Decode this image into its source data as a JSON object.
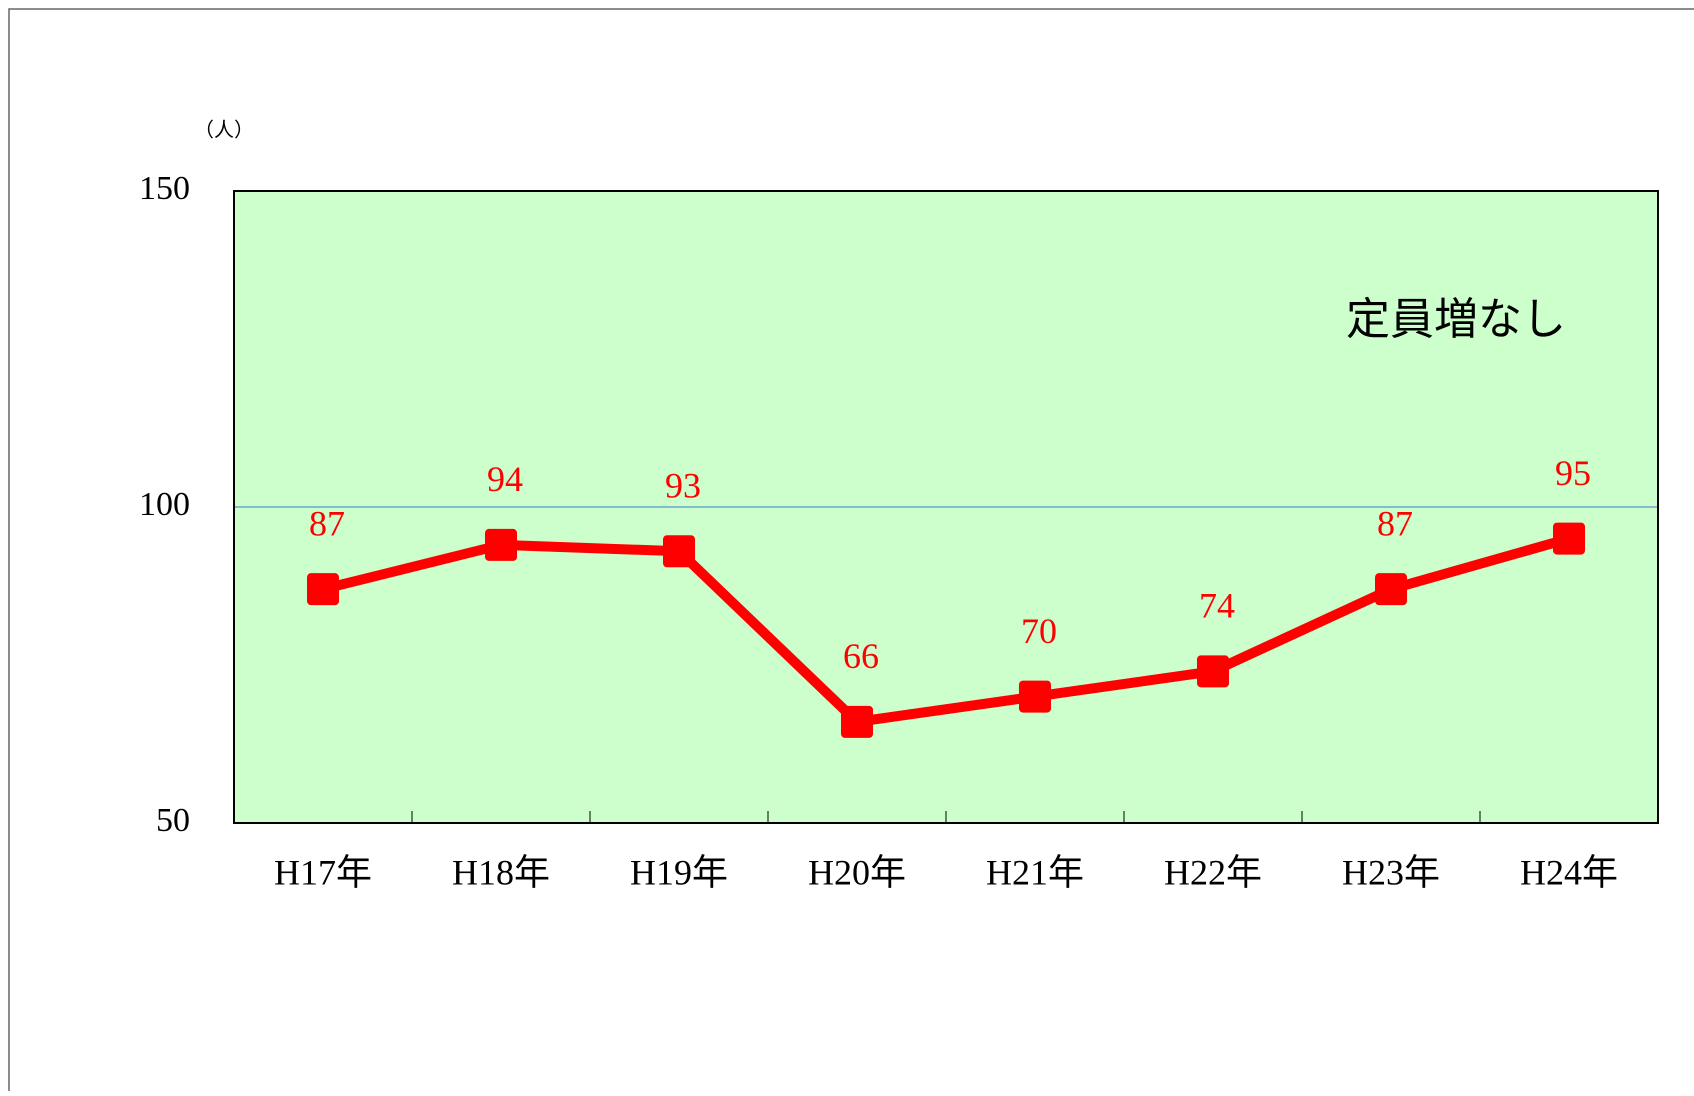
{
  "chart_data": {
    "type": "line",
    "y_label": "（人）",
    "annotation": "定員増なし",
    "categories": [
      "H17年",
      "H18年",
      "H19年",
      "H20年",
      "H21年",
      "H22年",
      "H23年",
      "H24年"
    ],
    "series": [
      {
        "name": "定員増なし",
        "color": "#ff0000",
        "values": [
          87,
          94,
          93,
          66,
          70,
          74,
          87,
          95
        ]
      }
    ],
    "ylim": [
      50,
      150
    ],
    "yticks": [
      50,
      100,
      150
    ],
    "grid": true,
    "plot_background": "#ccffcc",
    "grid_color": "#3a7ad0"
  }
}
